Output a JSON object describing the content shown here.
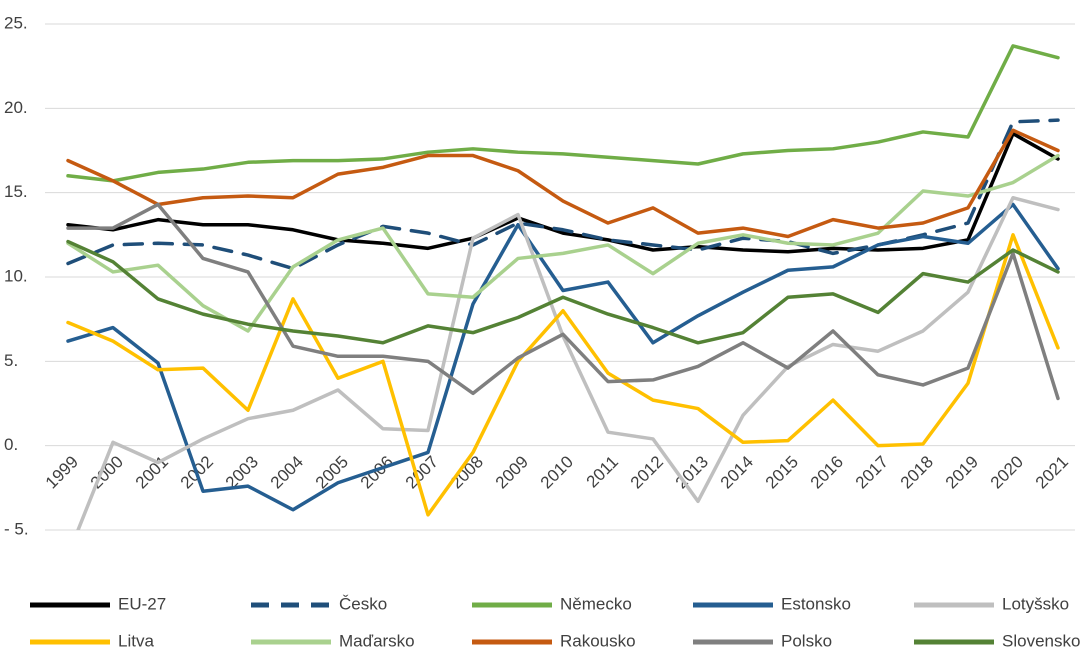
{
  "chart_data": {
    "type": "line",
    "categories": [
      "1999",
      "2000",
      "2001",
      "2002",
      "2003",
      "2004",
      "2005",
      "2006",
      "2007",
      "2008",
      "2009",
      "2010",
      "2011",
      "2012",
      "2013",
      "2014",
      "2015",
      "2016",
      "2017",
      "2018",
      "2019",
      "2020",
      "2021"
    ],
    "ylim": [
      -5,
      25
    ],
    "yticks": [
      {
        "value": -5,
        "label": "- 5."
      },
      {
        "value": 0,
        "label": "0."
      },
      {
        "value": 5,
        "label": "5."
      },
      {
        "value": 10,
        "label": "10."
      },
      {
        "value": 15,
        "label": "15."
      },
      {
        "value": 20,
        "label": "20."
      },
      {
        "value": 25,
        "label": "25."
      }
    ],
    "grid": true,
    "series": [
      {
        "name": "EU-27",
        "color": "#000000",
        "values": [
          13.1,
          12.8,
          13.4,
          13.1,
          13.1,
          12.8,
          12.2,
          12.0,
          11.7,
          12.3,
          13.5,
          12.6,
          12.2,
          11.6,
          11.8,
          11.6,
          11.5,
          11.7,
          11.6,
          11.7,
          12.2,
          18.5,
          17.0
        ]
      },
      {
        "name": "Česko",
        "color": "#1f4e79",
        "dashed": true,
        "values": [
          10.8,
          11.9,
          12.0,
          11.9,
          11.3,
          10.5,
          11.9,
          13.0,
          12.6,
          11.9,
          13.2,
          12.8,
          12.2,
          11.9,
          11.6,
          12.3,
          12.1,
          11.4,
          11.9,
          12.5,
          13.2,
          19.2,
          19.3
        ]
      },
      {
        "name": "Německo",
        "color": "#70ad47",
        "values": [
          16.0,
          15.7,
          16.2,
          16.4,
          16.8,
          16.9,
          16.9,
          17.0,
          17.4,
          17.6,
          17.4,
          17.3,
          17.1,
          16.9,
          16.7,
          17.3,
          17.5,
          17.6,
          18.0,
          18.6,
          18.3,
          23.7,
          23.0
        ]
      },
      {
        "name": "Estonsko",
        "color": "#255e91",
        "values": [
          6.2,
          7.0,
          4.9,
          -2.7,
          -2.4,
          -3.8,
          -2.2,
          -1.3,
          -0.4,
          8.4,
          13.1,
          9.2,
          9.7,
          6.1,
          7.7,
          9.1,
          10.4,
          10.6,
          11.9,
          12.4,
          12.0,
          14.3,
          10.5
        ]
      },
      {
        "name": "Lotyšsko",
        "color": "#bfbfbf",
        "values": [
          -6.5,
          0.2,
          -1.0,
          0.4,
          1.6,
          2.1,
          3.3,
          1.0,
          0.9,
          12.3,
          13.7,
          6.5,
          0.8,
          0.4,
          -3.3,
          1.8,
          4.7,
          6.0,
          5.6,
          6.8,
          9.1,
          14.7,
          14.0
        ]
      },
      {
        "name": "Litva",
        "color": "#ffc000",
        "values": [
          7.3,
          6.2,
          4.5,
          4.6,
          2.1,
          8.7,
          4.0,
          5.0,
          -4.1,
          -0.4,
          5.0,
          8.0,
          4.3,
          2.7,
          2.2,
          0.2,
          0.3,
          2.7,
          0.0,
          0.1,
          3.7,
          12.5,
          5.8
        ]
      },
      {
        "name": "Maďarsko",
        "color": "#a9d18e",
        "values": [
          12.0,
          10.3,
          10.7,
          8.3,
          6.8,
          10.6,
          12.2,
          12.9,
          9.0,
          8.8,
          11.1,
          11.4,
          11.9,
          10.2,
          12.0,
          12.5,
          12.0,
          11.9,
          12.6,
          15.1,
          14.8,
          15.6,
          17.2
        ]
      },
      {
        "name": "Rakousko",
        "color": "#c55a11",
        "values": [
          16.9,
          15.7,
          14.3,
          14.7,
          14.8,
          14.7,
          16.1,
          16.5,
          17.2,
          17.2,
          16.3,
          14.5,
          13.2,
          14.1,
          12.6,
          12.9,
          12.4,
          13.4,
          12.9,
          13.2,
          14.1,
          18.7,
          17.5
        ]
      },
      {
        "name": "Polsko",
        "color": "#7f7f7f",
        "values": [
          12.9,
          12.9,
          14.3,
          11.1,
          10.3,
          5.9,
          5.3,
          5.3,
          5.0,
          3.1,
          5.2,
          6.6,
          3.8,
          3.9,
          4.7,
          6.1,
          4.6,
          6.8,
          4.2,
          3.6,
          4.6,
          11.4,
          2.8
        ]
      },
      {
        "name": "Slovensko",
        "color": "#548235",
        "values": [
          12.1,
          10.9,
          8.7,
          7.8,
          7.2,
          6.8,
          6.5,
          6.1,
          7.1,
          6.7,
          7.6,
          8.8,
          7.8,
          7.0,
          6.1,
          6.7,
          8.8,
          9.0,
          7.9,
          10.2,
          9.7,
          11.6,
          10.3
        ]
      }
    ]
  }
}
